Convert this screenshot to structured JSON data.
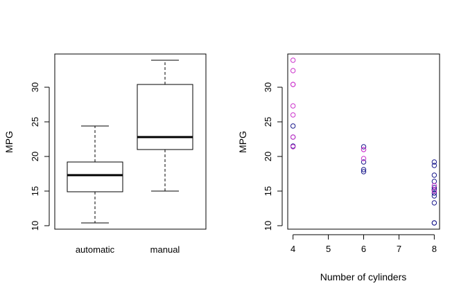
{
  "chart_data": [
    {
      "type": "box",
      "title": "",
      "xlabel": "",
      "ylabel": "MPG",
      "ylim": [
        9.5,
        34.8
      ],
      "yticks": [
        10,
        15,
        20,
        25,
        30
      ],
      "grid": false,
      "categories": [
        "automatic",
        "manual"
      ],
      "boxes": [
        {
          "category": "automatic",
          "whisker_low": 10.4,
          "q1": 14.9,
          "median": 17.3,
          "q3": 19.2,
          "whisker_high": 24.4
        },
        {
          "category": "manual",
          "whisker_low": 15.0,
          "q1": 21.0,
          "median": 22.8,
          "q3": 30.4,
          "whisker_high": 33.9
        }
      ]
    },
    {
      "type": "scatter",
      "title": "",
      "xlabel": "Number of cylinders",
      "ylabel": "MPG",
      "xlim": [
        3.85,
        8.15
      ],
      "ylim": [
        9.5,
        34.8
      ],
      "xticks": [
        4,
        5,
        6,
        7,
        8
      ],
      "yticks": [
        10,
        15,
        20,
        25,
        30
      ],
      "grid": false,
      "colors": {
        "automatic": "#1a1a8c",
        "manual": "#cc33cc"
      },
      "series": [
        {
          "group": "automatic",
          "x": [
            4,
            4,
            4,
            6,
            6,
            6,
            6,
            8,
            8,
            8,
            8,
            8,
            8,
            8,
            8,
            8,
            8,
            8,
            8
          ],
          "y": [
            24.4,
            22.8,
            21.5,
            21.4,
            18.1,
            19.2,
            17.8,
            18.7,
            14.3,
            16.4,
            17.3,
            15.2,
            10.4,
            10.4,
            14.7,
            15.5,
            15.2,
            13.3,
            19.2
          ]
        },
        {
          "group": "manual",
          "x": [
            4,
            4,
            4,
            4,
            4,
            4,
            4,
            4,
            6,
            6,
            6,
            8,
            8
          ],
          "y": [
            22.8,
            32.4,
            30.4,
            33.9,
            27.3,
            26.0,
            30.4,
            21.4,
            21.0,
            21.0,
            19.7,
            15.8,
            15.0
          ]
        }
      ]
    }
  ]
}
